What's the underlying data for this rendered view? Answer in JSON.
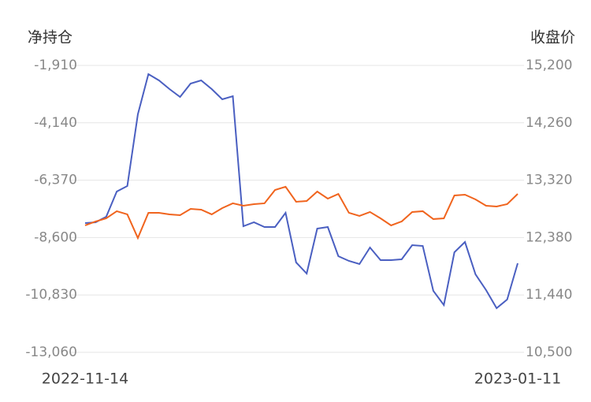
{
  "chart_data": {
    "type": "line",
    "y_label": "净持仓",
    "y2_label": "收盘价",
    "x": [
      "2022-11-14",
      null,
      null,
      null,
      null,
      null,
      null,
      null,
      null,
      null,
      null,
      null,
      null,
      null,
      null,
      null,
      null,
      null,
      null,
      null,
      null,
      null,
      null,
      null,
      null,
      null,
      null,
      null,
      null,
      null,
      null,
      null,
      null,
      null,
      null,
      null,
      null,
      null,
      null,
      null,
      null,
      "2023-01-11"
    ],
    "ylim": [
      -13060,
      -1910
    ],
    "yticks": [
      {
        "value": -1910,
        "label": "-1,910"
      },
      {
        "value": -4140,
        "label": "-4,140"
      },
      {
        "value": -6370,
        "label": "-6,370"
      },
      {
        "value": -8600,
        "label": "-8,600"
      },
      {
        "value": -10830,
        "label": "-10,830"
      },
      {
        "value": -13060,
        "label": "-13,060"
      }
    ],
    "y2lim": [
      10500,
      15200
    ],
    "y2ticks": [
      {
        "value": 15200,
        "label": "15,200"
      },
      {
        "value": 14260,
        "label": "14,260"
      },
      {
        "value": 13320,
        "label": "13,320"
      },
      {
        "value": 12380,
        "label": "12,380"
      },
      {
        "value": 11440,
        "label": "11,440"
      },
      {
        "value": 10500,
        "label": "10,500"
      }
    ],
    "grid": true,
    "series": [
      {
        "color": "#4a5fc1",
        "values": [
          -8036,
          -8005,
          -7791,
          -6811,
          -6597,
          -3809,
          -2247,
          -2492,
          -2829,
          -3135,
          -2614,
          -2492,
          -2829,
          -3227,
          -3105,
          -8159,
          -8005,
          -8189,
          -8189,
          -7638,
          -9568,
          -9997,
          -8251,
          -8189,
          -9323,
          -9506,
          -9629,
          -8986,
          -9476,
          -9476,
          -9445,
          -8894,
          -8925,
          -10670,
          -11222,
          -9170,
          -8772,
          -10028,
          -10640,
          -11344,
          -11007,
          -9598
        ]
      },
      {
        "color": "#f0641e",
        "axis": "y2",
        "values": [
          12579,
          12644,
          12695,
          12812,
          12760,
          12373,
          12786,
          12786,
          12760,
          12747,
          12850,
          12837,
          12760,
          12863,
          12941,
          12902,
          12928,
          12941,
          13160,
          13212,
          12967,
          12979,
          13134,
          13018,
          13095,
          12786,
          12734,
          12799,
          12695,
          12579,
          12644,
          12799,
          12812,
          12683,
          12695,
          13070,
          13083,
          13005,
          12902,
          12889,
          12928,
          13095
        ]
      }
    ]
  }
}
